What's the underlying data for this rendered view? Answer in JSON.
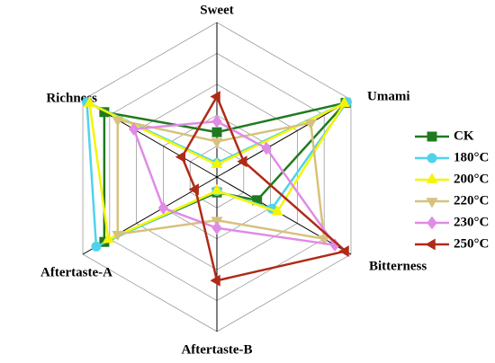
{
  "chart_data": {
    "type": "radar",
    "categories": [
      "Sweet",
      "Umami",
      "Bitterness",
      "Aftertaste-B",
      "Aftertaste-A",
      "Richness"
    ],
    "rlim": [
      0,
      5
    ],
    "series": [
      {
        "name": "CK",
        "color": "#1f7a1f",
        "marker": "square",
        "values": [
          1.45,
          4.8,
          1.5,
          0.5,
          4.2,
          4.2
        ]
      },
      {
        "name": "180°C",
        "color": "#4fd3ea",
        "marker": "circle",
        "values": [
          0.45,
          4.85,
          2.05,
          0.45,
          4.5,
          4.85
        ]
      },
      {
        "name": "200°C",
        "color": "#f5f500",
        "marker": "triangle-up",
        "values": [
          0.4,
          4.75,
          2.25,
          0.45,
          4.05,
          4.75
        ]
      },
      {
        "name": "220°C",
        "color": "#d6c27c",
        "marker": "triangle-down",
        "values": [
          1.15,
          3.5,
          4.0,
          1.4,
          3.7,
          3.7
        ]
      },
      {
        "name": "230°C",
        "color": "#e08be6",
        "marker": "diamond",
        "values": [
          1.8,
          1.85,
          4.4,
          1.65,
          2.0,
          3.1
        ]
      },
      {
        "name": "250°C",
        "color": "#b02a18",
        "marker": "triangle-left",
        "values": [
          2.6,
          1.0,
          4.8,
          3.35,
          0.8,
          1.3
        ]
      }
    ]
  }
}
